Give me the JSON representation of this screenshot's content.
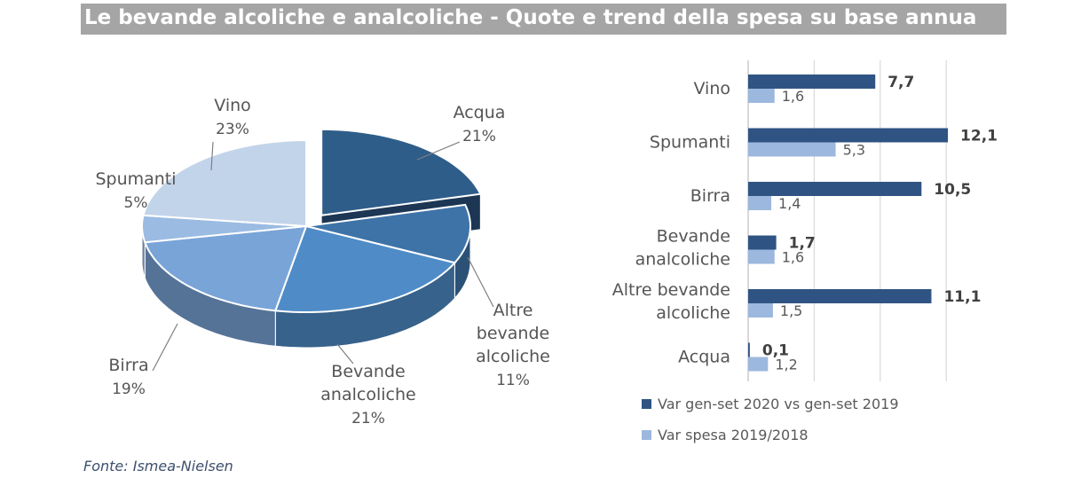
{
  "title": "Le bevande alcoliche e analcoliche - Quote e trend della spesa su base annua",
  "source": "Fonte: Ismea-Nielsen",
  "chart_data": [
    {
      "type": "pie",
      "title": "",
      "slices": [
        {
          "label": "Acqua",
          "value": 21,
          "display": "21%",
          "color": "#2f5d8a"
        },
        {
          "label": "Altre bevande alcoliche",
          "value": 11,
          "display": "11%",
          "color": "#3e73a8"
        },
        {
          "label": "Bevande analcoliche",
          "value": 21,
          "display": "21%",
          "color": "#4f8cc7"
        },
        {
          "label": "Birra",
          "value": 19,
          "display": "19%",
          "color": "#79a4d8"
        },
        {
          "label": "Spumanti",
          "value": 5,
          "display": "5%",
          "color": "#9bbbe2"
        },
        {
          "label": "Vino",
          "value": 23,
          "display": "23%",
          "color": "#c2d4ea"
        }
      ]
    },
    {
      "type": "bar",
      "orientation": "horizontal",
      "categories": [
        "Vino",
        "Spumanti",
        "Birra",
        "Bevande analcoliche",
        "Altre bevande alcoliche",
        "Acqua"
      ],
      "series": [
        {
          "name": "Var gen-set 2020 vs gen-set 2019",
          "values": [
            7.7,
            12.1,
            10.5,
            1.7,
            11.1,
            0.1
          ],
          "labels": [
            "7,7",
            "12,1",
            "10,5",
            "1,7",
            "11,1",
            "0,1"
          ],
          "color": "#2f5483"
        },
        {
          "name": "Var spesa 2019/2018",
          "values": [
            1.6,
            5.3,
            1.4,
            1.6,
            1.5,
            1.2
          ],
          "labels": [
            "1,6",
            "5,3",
            "1,4",
            "1,6",
            "1,5",
            "1,2"
          ],
          "color": "#9db8de"
        }
      ],
      "xlim": [
        -0.2,
        16
      ],
      "legend_position": "bottom"
    }
  ]
}
